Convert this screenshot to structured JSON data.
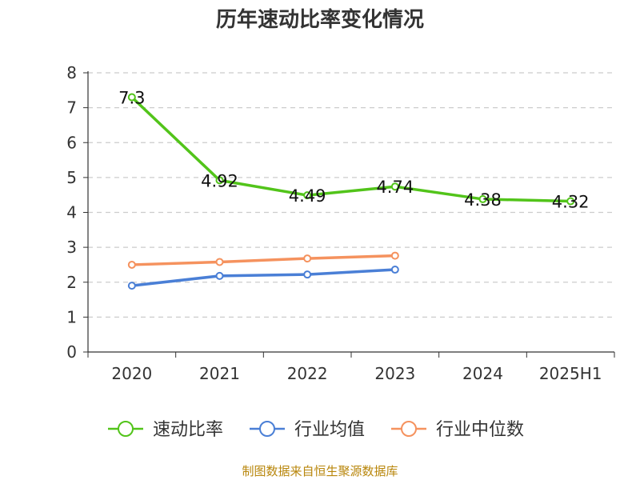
{
  "chart_data": {
    "type": "line",
    "title": "历年速动比率变化情况",
    "categories": [
      "2020",
      "2021",
      "2022",
      "2023",
      "2024",
      "2025H1"
    ],
    "ylim": [
      0,
      8
    ],
    "yticks": [
      "0",
      "1",
      "2",
      "3",
      "4",
      "5",
      "6",
      "7",
      "8"
    ],
    "grid": true,
    "legend_position": "bottom",
    "series": [
      {
        "name": "速动比率",
        "color": "#52c41a",
        "values": [
          7.3,
          4.92,
          4.49,
          4.74,
          4.38,
          4.32
        ],
        "labels": [
          "7.3",
          "4.92",
          "4.49",
          "4.74",
          "4.38",
          "4.32"
        ]
      },
      {
        "name": "行业均值",
        "color": "#4a7fd6",
        "values": [
          1.9,
          2.18,
          2.22,
          2.36,
          null,
          null
        ]
      },
      {
        "name": "行业中位数",
        "color": "#f5925e",
        "values": [
          2.5,
          2.58,
          2.68,
          2.76,
          null,
          null
        ]
      }
    ]
  },
  "source_text": "制图数据来自恒生聚源数据库"
}
